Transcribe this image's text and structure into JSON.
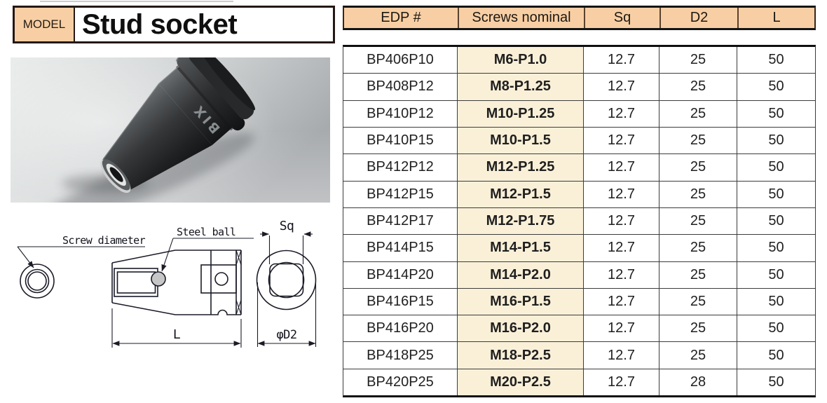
{
  "model_box": {
    "label": "MODEL",
    "title": "Stud socket"
  },
  "photo": {
    "engraving": "BIX"
  },
  "diagram": {
    "screw_diameter_label": "Screw diameter",
    "steel_ball_label": "Steel ball",
    "sq_label": "Sq",
    "length_label": "L",
    "d2_label": "φD2"
  },
  "table": {
    "columns": [
      "EDP #",
      "Screws nominal",
      "Sq",
      "D2",
      "L"
    ],
    "column_keys": [
      "edp",
      "nominal",
      "sq",
      "d2",
      "l"
    ],
    "rows": [
      [
        "BP406P10",
        "M6-P1.0",
        "12.7",
        "25",
        "50"
      ],
      [
        "BP408P12",
        "M8-P1.25",
        "12.7",
        "25",
        "50"
      ],
      [
        "BP410P12",
        "M10-P1.25",
        "12.7",
        "25",
        "50"
      ],
      [
        "BP410P15",
        "M10-P1.5",
        "12.7",
        "25",
        "50"
      ],
      [
        "BP412P12",
        "M12-P1.25",
        "12.7",
        "25",
        "50"
      ],
      [
        "BP412P15",
        "M12-P1.5",
        "12.7",
        "25",
        "50"
      ],
      [
        "BP412P17",
        "M12-P1.75",
        "12.7",
        "25",
        "50"
      ],
      [
        "BP414P15",
        "M14-P1.5",
        "12.7",
        "25",
        "50"
      ],
      [
        "BP414P20",
        "M14-P2.0",
        "12.7",
        "25",
        "50"
      ],
      [
        "BP416P15",
        "M16-P1.5",
        "12.7",
        "25",
        "50"
      ],
      [
        "BP416P20",
        "M16-P2.0",
        "12.7",
        "25",
        "50"
      ],
      [
        "BP418P25",
        "M18-P2.5",
        "12.7",
        "25",
        "50"
      ],
      [
        "BP420P25",
        "M20-P2.5",
        "12.7",
        "28",
        "50"
      ]
    ]
  },
  "colors": {
    "header_bg": "#f8cfa4",
    "nominal_col_bg": "#faf0d8",
    "box_border": "#231815",
    "table_line": "#3c3c3c",
    "diagram_line": "#1b1b28"
  }
}
